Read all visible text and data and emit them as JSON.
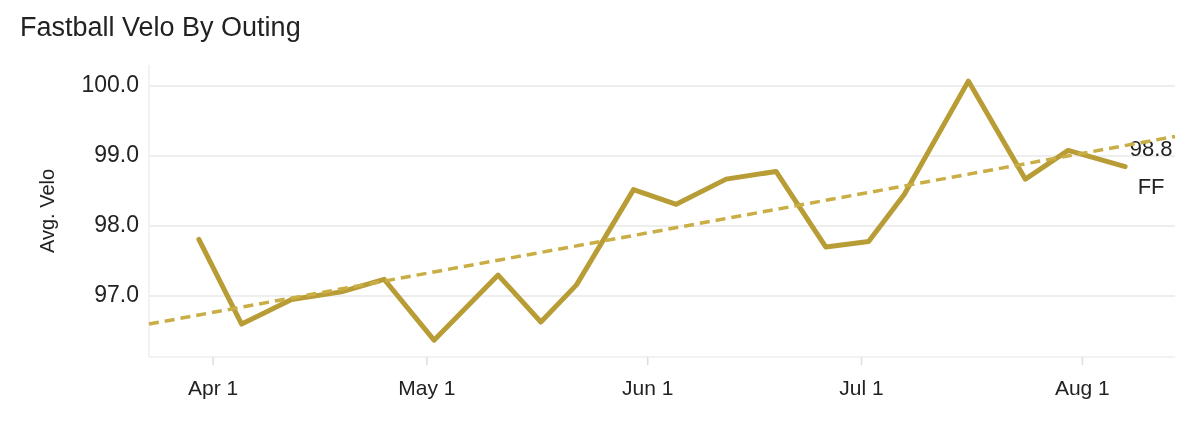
{
  "chart_data": {
    "type": "line",
    "title": "Fastball Velo By Outing",
    "ylabel": "Avg. Velo",
    "x": [
      "--03-30",
      "--04-05",
      "--04-12",
      "--04-19",
      "--04-25",
      "--05-02",
      "--05-11",
      "--05-17",
      "--05-22",
      "--05-30",
      "--06-05",
      "--06-12",
      "--06-19",
      "--06-26",
      "--07-02",
      "--07-07",
      "--07-16",
      "--07-24",
      "--07-30",
      "--08-07"
    ],
    "series": [
      {
        "name": "FF",
        "color": "#b89c35",
        "values": [
          97.81,
          96.6,
          96.95,
          97.06,
          97.24,
          96.37,
          97.3,
          96.63,
          97.16,
          98.52,
          98.31,
          98.67,
          98.78,
          97.7,
          97.78,
          98.45,
          100.07,
          98.67,
          99.08,
          98.85
        ],
        "value_labels": [
          null,
          null,
          null,
          null,
          null,
          null,
          null,
          null,
          null,
          null,
          null,
          null,
          null,
          null,
          null,
          null,
          null,
          null,
          null,
          "98.8"
        ]
      },
      {
        "type": "line",
        "color": "#c9ad45",
        "line_style": "dashed",
        "x": [
          "--03-23",
          "--08-14"
        ],
        "values": [
          96.6,
          99.28
        ]
      }
    ],
    "xlim": [
      "--03-23",
      "--08-14"
    ],
    "xticks": [
      {
        "value": "--04-01",
        "label": "Apr 1"
      },
      {
        "value": "--05-01",
        "label": "May 1"
      },
      {
        "value": "--06-01",
        "label": "Jun 1"
      },
      {
        "value": "--07-01",
        "label": "Jul 1"
      },
      {
        "value": "--08-01",
        "label": "Aug 1"
      }
    ],
    "ylim": [
      96.13,
      100.3
    ],
    "yticks": [
      {
        "value": 97,
        "label": "97.0"
      },
      {
        "value": 98,
        "label": "98.0"
      },
      {
        "value": 99,
        "label": "99.0"
      },
      {
        "value": 100,
        "label": "100.0"
      }
    ],
    "grid": "y",
    "marker": "none",
    "line_style": "solid"
  }
}
